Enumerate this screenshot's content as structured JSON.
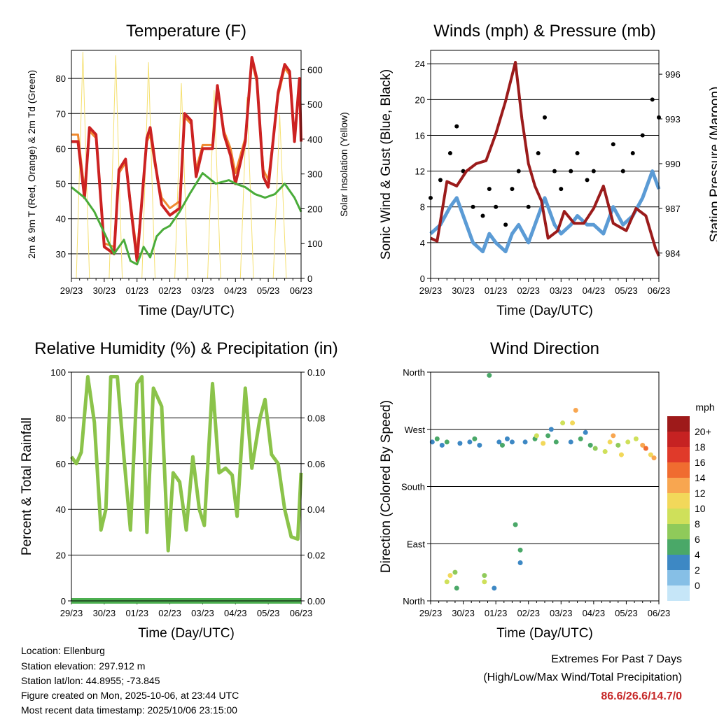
{
  "colors": {
    "temp2m": "#cc2222",
    "temp9m": "#f08a30",
    "dewpoint": "#4aac3a",
    "insolation": "#f5e070",
    "gust": "#000000",
    "wind": "#5b9bd5",
    "pressure": "#9b1b1b",
    "humidity": "#8bc34a",
    "rain": "#4caf50",
    "extreme": "#c62828"
  },
  "chart_data": [
    {
      "id": "temperature",
      "type": "line",
      "title": "Temperature (F)",
      "xlabel": "Time (Day/UTC)",
      "ylabel": "2m & 9m T (Red, Orange) & 2m Td (Green)",
      "y2label": "Solar Insolation (Yellow)",
      "xticks": [
        "29/23",
        "30/23",
        "01/23",
        "02/23",
        "03/23",
        "04/23",
        "05/23",
        "06/23"
      ],
      "xlim": [
        0,
        7
      ],
      "ylim": [
        23,
        88
      ],
      "yticks": [
        30,
        40,
        50,
        60,
        70,
        80
      ],
      "y2lim": [
        0,
        655
      ],
      "y2ticks": [
        0,
        100,
        200,
        300,
        400,
        500,
        600
      ],
      "series": [
        {
          "name": "2m T (Red)",
          "axis": "y",
          "x": [
            0,
            0.2,
            0.4,
            0.55,
            0.75,
            1,
            1.3,
            1.45,
            1.65,
            1.8,
            2,
            2.3,
            2.4,
            2.55,
            2.75,
            3,
            3.3,
            3.45,
            3.65,
            3.8,
            4,
            4.3,
            4.45,
            4.65,
            4.85,
            5,
            5.3,
            5.5,
            5.65,
            5.85,
            6,
            6.3,
            6.5,
            6.65,
            6.8,
            6.95,
            7
          ],
          "values": [
            62,
            62,
            46,
            66,
            64,
            32,
            30,
            54,
            57,
            44,
            28,
            63,
            66,
            56,
            44,
            41,
            43,
            70,
            68,
            52,
            60,
            60,
            78,
            64,
            58,
            50,
            62,
            86,
            80,
            52,
            49,
            76,
            84,
            82,
            62,
            80,
            62
          ]
        },
        {
          "name": "9m T (Orange)",
          "axis": "y",
          "x": [
            0,
            0.2,
            0.4,
            0.55,
            0.75,
            1,
            1.3,
            1.45,
            1.65,
            1.8,
            2,
            2.3,
            2.4,
            2.55,
            2.75,
            3,
            3.3,
            3.45,
            3.65,
            3.8,
            4,
            4.3,
            4.45,
            4.65,
            4.85,
            5,
            5.3,
            5.5,
            5.65,
            5.85,
            6,
            6.3,
            6.5,
            6.65,
            6.8,
            6.95,
            7
          ],
          "values": [
            64,
            64,
            48,
            65,
            63,
            33,
            32,
            53,
            56,
            45,
            30,
            62,
            64,
            55,
            46,
            43,
            45,
            69,
            67,
            54,
            61,
            61,
            77,
            65,
            60,
            53,
            63,
            85,
            79,
            54,
            51,
            75,
            83,
            81,
            63,
            79,
            63
          ]
        },
        {
          "name": "2m Td (Green)",
          "axis": "y",
          "x": [
            0,
            0.4,
            0.7,
            1,
            1.3,
            1.6,
            1.8,
            2,
            2.2,
            2.4,
            2.6,
            2.8,
            3,
            3.3,
            3.6,
            4,
            4.4,
            4.8,
            5,
            5.3,
            5.6,
            5.9,
            6.2,
            6.5,
            6.8,
            7
          ],
          "values": [
            49,
            46,
            42,
            36,
            30,
            34,
            28,
            27,
            32,
            29,
            35,
            37,
            38,
            42,
            47,
            53,
            50,
            51,
            50,
            49,
            47,
            46,
            47,
            50,
            46,
            42
          ]
        },
        {
          "name": "Solar Insolation (Yellow)",
          "axis": "y2",
          "x": [
            0.15,
            0.25,
            0.35,
            0.45,
            0.55,
            1.15,
            1.25,
            1.35,
            1.45,
            1.55,
            2.15,
            2.25,
            2.35,
            2.45,
            2.55,
            3.15,
            3.25,
            3.35,
            3.45,
            3.55,
            4.15,
            4.25,
            4.35,
            4.45,
            4.55,
            5.15,
            5.25,
            5.35,
            5.45,
            5.55,
            6.15,
            6.25,
            6.35,
            6.45,
            6.55
          ],
          "values": [
            0,
            320,
            650,
            320,
            0,
            0,
            310,
            640,
            310,
            0,
            0,
            300,
            620,
            300,
            0,
            0,
            280,
            560,
            280,
            0,
            0,
            270,
            540,
            270,
            0,
            0,
            260,
            520,
            260,
            0,
            0,
            230,
            470,
            230,
            0
          ]
        }
      ]
    },
    {
      "id": "winds",
      "type": "scatter",
      "title": "Winds (mph) & Pressure (mb)",
      "xlabel": "Time (Day/UTC)",
      "ylabel": "Sonic Wind & Gust (Blue, Black)",
      "y2label": "Station Pressure (Maroon)",
      "xticks": [
        "29/23",
        "30/23",
        "01/23",
        "02/23",
        "03/23",
        "04/23",
        "05/23",
        "06/23"
      ],
      "xlim": [
        0,
        7
      ],
      "ylim": [
        0,
        25.5
      ],
      "yticks": [
        0,
        4,
        8,
        12,
        16,
        20,
        24
      ],
      "y2lim": [
        982.3,
        997.6
      ],
      "y2ticks": [
        984,
        987,
        990,
        993,
        996
      ],
      "series": [
        {
          "name": "Gust (Black)",
          "axis": "y",
          "x": [
            0,
            0.3,
            0.6,
            0.8,
            1,
            1.3,
            1.6,
            1.8,
            2,
            2.3,
            2.5,
            2.7,
            3,
            3.3,
            3.5,
            3.8,
            4,
            4.3,
            4.5,
            4.8,
            5,
            5.3,
            5.6,
            5.9,
            6.2,
            6.5,
            6.8,
            7
          ],
          "values": [
            9,
            11,
            14,
            17,
            12,
            8,
            7,
            10,
            8,
            6,
            10,
            12,
            8,
            14,
            18,
            12,
            10,
            12,
            14,
            11,
            12,
            10,
            15,
            12,
            14,
            16,
            20,
            18
          ]
        },
        {
          "name": "Wind (Blue)",
          "axis": "y",
          "x": [
            0,
            0.3,
            0.6,
            0.8,
            1,
            1.3,
            1.6,
            1.8,
            2,
            2.3,
            2.5,
            2.7,
            3,
            3.3,
            3.5,
            3.8,
            4,
            4.3,
            4.5,
            4.8,
            5,
            5.3,
            5.6,
            5.9,
            6.2,
            6.5,
            6.8,
            7
          ],
          "values": [
            5,
            6,
            8,
            9,
            7,
            4,
            3,
            5,
            4,
            3,
            5,
            6,
            4,
            7,
            9,
            6,
            5,
            6,
            7,
            6,
            6,
            5,
            8,
            6,
            7,
            9,
            12,
            10
          ]
        },
        {
          "name": "Station Pressure (Maroon)",
          "axis": "y2",
          "x": [
            0,
            0.2,
            0.5,
            0.8,
            1.1,
            1.4,
            1.7,
            2,
            2.3,
            2.6,
            2.8,
            3,
            3.2,
            3.4,
            3.6,
            3.9,
            4.1,
            4.4,
            4.7,
            5,
            5.3,
            5.6,
            6,
            6.3,
            6.6,
            6.9,
            7
          ],
          "values": [
            985,
            984.8,
            988.8,
            988.5,
            989.5,
            990,
            990.2,
            992,
            994.2,
            996.8,
            993,
            990,
            988.5,
            987.5,
            985,
            985.5,
            986.8,
            986,
            986,
            987,
            988.5,
            986,
            985.5,
            987,
            986.5,
            984.3,
            983.8
          ]
        }
      ]
    },
    {
      "id": "humidity",
      "type": "line",
      "title": "Relative Humidity (%) & Precipitation (in)",
      "xlabel": "Time (Day/UTC)",
      "ylabel": "Percent & Total Rainfall",
      "xticks": [
        "29/23",
        "30/23",
        "01/23",
        "02/23",
        "03/23",
        "04/23",
        "05/23",
        "06/23"
      ],
      "xlim": [
        0,
        7
      ],
      "ylim": [
        0,
        100
      ],
      "yticks": [
        0,
        20,
        40,
        60,
        80,
        100
      ],
      "y2lim": [
        0,
        0.1
      ],
      "y2ticks": [
        "0.00",
        "0.02",
        "0.04",
        "0.06",
        "0.08",
        "0.10"
      ],
      "series": [
        {
          "name": "Relative Humidity",
          "axis": "y",
          "x": [
            0,
            0.15,
            0.3,
            0.5,
            0.7,
            0.9,
            1.05,
            1.2,
            1.4,
            1.6,
            1.8,
            2,
            2.15,
            2.3,
            2.5,
            2.75,
            2.95,
            3.1,
            3.3,
            3.5,
            3.7,
            3.9,
            4.05,
            4.3,
            4.5,
            4.7,
            4.9,
            5.05,
            5.3,
            5.5,
            5.75,
            5.9,
            6.1,
            6.3,
            6.5,
            6.7,
            6.9,
            7
          ],
          "values": [
            63,
            60,
            65,
            98,
            78,
            31,
            40,
            98,
            98,
            63,
            31,
            95,
            98,
            30,
            93,
            85,
            22,
            56,
            52,
            31,
            63,
            40,
            33,
            95,
            56,
            58,
            55,
            37,
            93,
            58,
            80,
            88,
            64,
            60,
            40,
            28,
            27,
            56
          ]
        },
        {
          "name": "Total Rainfall",
          "axis": "y2",
          "x": [
            0,
            7
          ],
          "values": [
            0,
            0
          ]
        }
      ]
    },
    {
      "id": "wind_direction",
      "type": "scatter",
      "title": "Wind Direction",
      "xlabel": "Time (Day/UTC)",
      "ylabel": "Direction (Colored By Speed)",
      "xticks": [
        "29/23",
        "30/23",
        "01/23",
        "02/23",
        "03/23",
        "04/23",
        "05/23",
        "06/23"
      ],
      "xlim": [
        0,
        7
      ],
      "ylim": [
        0,
        360
      ],
      "ytick_values": [
        0,
        90,
        180,
        270,
        360
      ],
      "yticks": [
        "North",
        "East",
        "South",
        "West",
        "North"
      ],
      "colorbar_title": "mph",
      "colorbar_labels": [
        "20+",
        "18",
        "16",
        "14",
        "12",
        "10",
        "8",
        "6",
        "4",
        "2",
        "0"
      ],
      "colorbar_colors": [
        "#9e1a1a",
        "#c62222",
        "#e03a2a",
        "#f06c30",
        "#f8a650",
        "#f2d85a",
        "#cfe05a",
        "#8fca5a",
        "#4aa868",
        "#3d88c4",
        "#86bfe6",
        "#c6e6f8"
      ],
      "series": [
        {
          "name": "Direction",
          "x": [
            0.05,
            0.2,
            0.35,
            0.5,
            0.5,
            0.6,
            0.75,
            0.8,
            0.9,
            1.2,
            1.35,
            1.5,
            1.65,
            1.65,
            1.8,
            1.95,
            2.1,
            2.2,
            2.35,
            2.5,
            2.6,
            2.75,
            2.75,
            2.9,
            3.2,
            3.25,
            3.45,
            3.6,
            3.7,
            3.85,
            4.05,
            4.3,
            4.35,
            4.45,
            4.6,
            4.75,
            4.9,
            5.05,
            5.35,
            5.5,
            5.6,
            5.75,
            5.85,
            6.05,
            6.3,
            6.5,
            6.6,
            6.75,
            6.85
          ],
          "values": [
            250,
            255,
            245,
            250,
            30,
            40,
            45,
            20,
            248,
            250,
            255,
            245,
            40,
            30,
            355,
            20,
            250,
            245,
            255,
            250,
            120,
            80,
            60,
            250,
            255,
            260,
            248,
            260,
            270,
            250,
            280,
            250,
            280,
            300,
            255,
            265,
            245,
            240,
            235,
            250,
            260,
            245,
            230,
            250,
            255,
            245,
            240,
            230,
            225
          ],
          "speeds": [
            4,
            6,
            3,
            5,
            10,
            12,
            8,
            6,
            3,
            4,
            5,
            3,
            8,
            10,
            6,
            4,
            3,
            5,
            4,
            3,
            5,
            6,
            3,
            4,
            6,
            10,
            12,
            6,
            4,
            5,
            9,
            4,
            12,
            14,
            6,
            4,
            5,
            8,
            10,
            12,
            14,
            8,
            12,
            9,
            10,
            14,
            16,
            12,
            14
          ]
        }
      ]
    }
  ],
  "info": {
    "location": "Location: Ellenburg",
    "elevation": "Station elevation: 297.912 m",
    "latlon": "Station lat/lon: 44.8955; -73.845",
    "created": "Figure created on Mon, 2025-10-06, at 23:44 UTC",
    "recent": "Most recent data timestamp: 2025/10/06 23:15:00"
  },
  "extremes": {
    "title": "Extremes For Past 7 Days",
    "subtitle": "(High/Low/Max Wind/Total Precipitation)",
    "values": "86.6/26.6/14.7/0"
  }
}
